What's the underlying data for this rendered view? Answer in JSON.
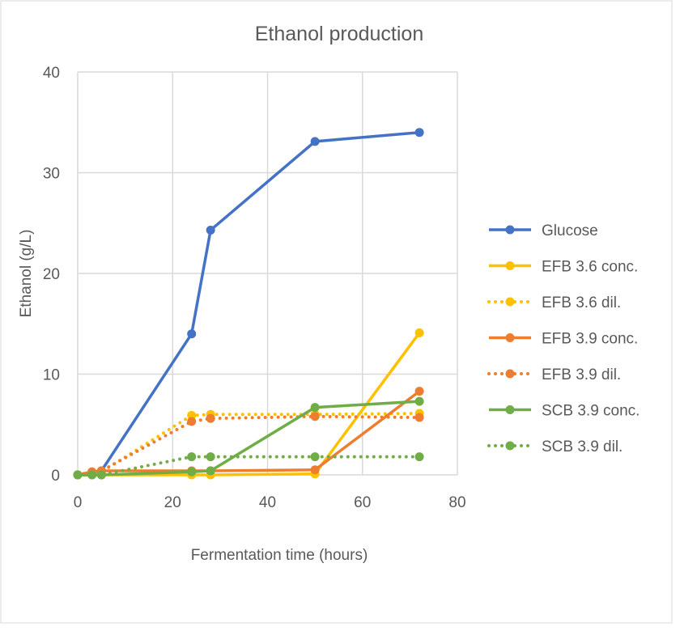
{
  "chart_data": {
    "type": "line",
    "title": "Ethanol production",
    "xlabel": "Fermentation time (hours)",
    "ylabel": "Ethanol (g/L)",
    "xlim": [
      0,
      80
    ],
    "ylim": [
      0,
      40
    ],
    "xticks": [
      0,
      20,
      40,
      60,
      80
    ],
    "yticks": [
      0,
      10,
      20,
      30,
      40
    ],
    "grid": true,
    "legend_position": "right",
    "x": [
      0,
      3,
      5,
      24,
      28,
      50,
      72
    ],
    "series": [
      {
        "name": "Glucose",
        "color": "#4472C4",
        "dash": "solid",
        "values": [
          0,
          0,
          0.4,
          14.0,
          24.3,
          33.1,
          34.0
        ]
      },
      {
        "name": "EFB 3.6 conc.",
        "color": "#FFC000",
        "dash": "solid",
        "values": [
          0,
          0,
          0,
          0,
          0,
          0.1,
          14.1
        ]
      },
      {
        "name": "EFB 3.6 dil.",
        "color": "#FFC000",
        "dash": "dotted",
        "values": [
          0,
          0.2,
          0.3,
          5.9,
          6.0,
          6.0,
          6.1
        ]
      },
      {
        "name": "EFB 3.9 conc.",
        "color": "#ED7D31",
        "dash": "solid",
        "values": [
          0,
          0.3,
          0.4,
          0.4,
          0.4,
          0.5,
          8.3
        ]
      },
      {
        "name": "EFB 3.9 dil.",
        "color": "#ED7D31",
        "dash": "dotted",
        "values": [
          0,
          0.3,
          0.4,
          5.3,
          5.6,
          5.8,
          5.7
        ]
      },
      {
        "name": "SCB 3.9 conc.",
        "color": "#70AD47",
        "dash": "solid",
        "values": [
          0,
          0,
          0,
          0.3,
          0.4,
          6.7,
          7.3
        ]
      },
      {
        "name": "SCB 3.9 dil.",
        "color": "#70AD47",
        "dash": "dotted",
        "values": [
          0,
          0,
          0,
          1.8,
          1.8,
          1.8,
          1.8
        ]
      }
    ]
  }
}
